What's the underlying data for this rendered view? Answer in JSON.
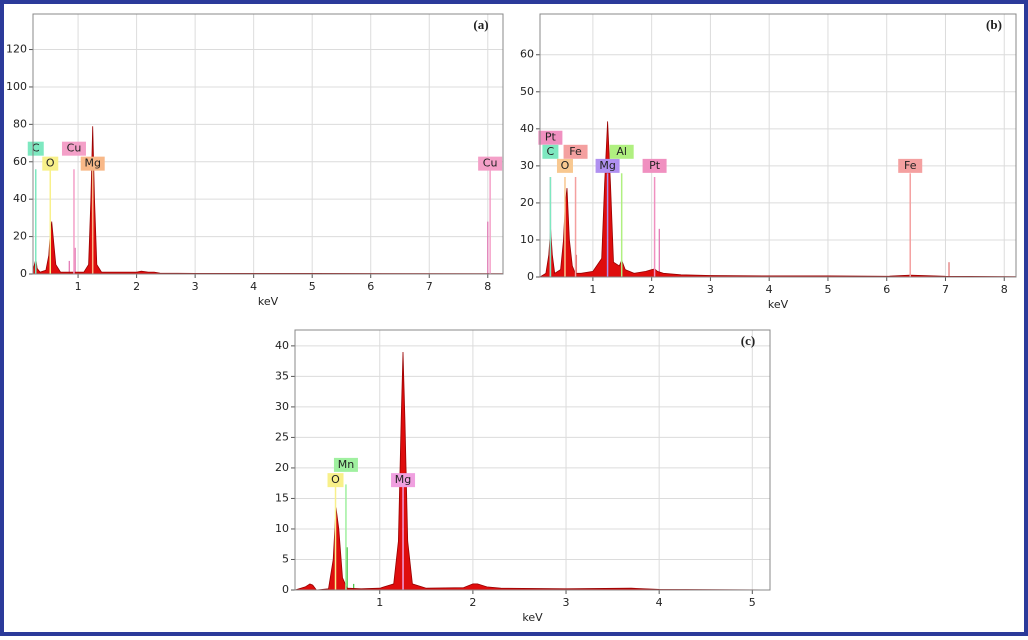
{
  "chart_data": [
    {
      "type": "area",
      "title": "(a)",
      "xlabel": "keV",
      "xlim": [
        0.23,
        8.26
      ],
      "ylim": [
        0,
        139
      ],
      "xticks": [
        1,
        2,
        3,
        4,
        5,
        6,
        7,
        8
      ],
      "yticks": [
        0,
        20,
        40,
        60,
        80,
        100,
        120
      ],
      "grid": true,
      "x": [
        0.23,
        0.28,
        0.3,
        0.35,
        0.45,
        0.5,
        0.52,
        0.55,
        0.58,
        0.62,
        0.7,
        0.9,
        1.1,
        1.18,
        1.22,
        1.25,
        1.28,
        1.32,
        1.4,
        1.8,
        2.0,
        2.08,
        2.2,
        2.3,
        2.4,
        3,
        5,
        8.26
      ],
      "series": [
        {
          "color": "#dd0000",
          "values": [
            2,
            8,
            3,
            1,
            2,
            10,
            20,
            28,
            18,
            5,
            1,
            1,
            1,
            5,
            40,
            79,
            40,
            5,
            1,
            1,
            1,
            1.5,
            1,
            1,
            0.5,
            0.3,
            0.3,
            0.2
          ]
        }
      ],
      "annotations": [
        {
          "label": "C",
          "x": 0.277,
          "y": 56,
          "label_y": 67,
          "color": "#7ee8c0"
        },
        {
          "label": "O",
          "x": 0.525,
          "y": 59,
          "label_y": 59,
          "color": "#f8f08a"
        },
        {
          "label": "Cu",
          "x": 0.93,
          "y": 56,
          "label_y": 67,
          "color": "#f4a0c8"
        },
        {
          "label": "Mg",
          "x": 1.25,
          "y": 59,
          "label_y": 59,
          "color": "#f8b888"
        },
        {
          "label": "Cu",
          "x": 8.04,
          "y": 57,
          "label_y": 59,
          "color": "#f4a0c8"
        }
      ],
      "minor_lines": [
        {
          "x": 0.95,
          "y": 14,
          "color": "#e070b0"
        },
        {
          "x": 0.85,
          "y": 7,
          "color": "#e070b0"
        },
        {
          "x": 8.0,
          "y": 28,
          "color": "#e070b0"
        }
      ]
    },
    {
      "type": "area",
      "title": "(b)",
      "xlabel": "keV",
      "xlim": [
        0.1,
        8.2
      ],
      "ylim": [
        0,
        71
      ],
      "xticks": [
        1,
        2,
        3,
        4,
        5,
        6,
        7,
        8
      ],
      "yticks": [
        0,
        10,
        20,
        30,
        40,
        50,
        60
      ],
      "grid": true,
      "x": [
        0.1,
        0.2,
        0.25,
        0.28,
        0.31,
        0.35,
        0.45,
        0.5,
        0.53,
        0.56,
        0.6,
        0.65,
        0.7,
        0.8,
        1.0,
        1.15,
        1.2,
        1.25,
        1.3,
        1.35,
        1.45,
        1.49,
        1.55,
        1.7,
        1.9,
        2.0,
        2.05,
        2.1,
        2.2,
        2.5,
        3,
        4,
        5,
        6,
        6.4,
        7,
        8.2
      ],
      "series": [
        {
          "color": "#dd0000",
          "values": [
            0,
            1,
            6,
            13,
            6,
            1,
            2,
            10,
            20,
            24,
            10,
            3,
            1,
            1,
            1.5,
            5,
            25,
            42,
            25,
            4,
            3,
            4.5,
            2,
            1,
            1.5,
            2,
            2.2,
            1.5,
            1,
            0.6,
            0.4,
            0.3,
            0.3,
            0.2,
            0.5,
            0.2,
            0.1
          ]
        }
      ],
      "annotations": [
        {
          "label": "Pt",
          "x": 0.277,
          "y": 27,
          "label_y": 37.6,
          "color": "#f090c0"
        },
        {
          "label": "C",
          "x": 0.277,
          "y": 27,
          "label_y": 33.8,
          "color": "#7ee8c0"
        },
        {
          "label": "O",
          "x": 0.525,
          "y": 27,
          "label_y": 30,
          "color": "#f8c890"
        },
        {
          "label": "Fe",
          "x": 0.705,
          "y": 27,
          "label_y": 33.8,
          "color": "#f4a0a0"
        },
        {
          "label": "Mg",
          "x": 1.25,
          "y": 28,
          "label_y": 30,
          "color": "#b090f0"
        },
        {
          "label": "Al",
          "x": 1.49,
          "y": 28,
          "label_y": 33.8,
          "color": "#b0f080"
        },
        {
          "label": "Pt",
          "x": 2.05,
          "y": 27,
          "label_y": 30,
          "color": "#f090c0"
        },
        {
          "label": "Fe",
          "x": 6.4,
          "y": 28,
          "label_y": 30,
          "color": "#f4a0a0"
        }
      ],
      "minor_lines": [
        {
          "x": 0.72,
          "y": 6,
          "color": "#e07070"
        },
        {
          "x": 2.13,
          "y": 13,
          "color": "#e070b0"
        },
        {
          "x": 7.06,
          "y": 4,
          "color": "#e07070"
        }
      ]
    },
    {
      "type": "area",
      "title": "(c)",
      "xlabel": "keV",
      "xlim": [
        0.09,
        5.19
      ],
      "ylim": [
        0,
        42.6
      ],
      "xticks": [
        1,
        2,
        3,
        4,
        5
      ],
      "yticks": [
        0,
        5,
        10,
        15,
        20,
        25,
        30,
        35,
        40
      ],
      "grid": true,
      "x": [
        0.09,
        0.2,
        0.25,
        0.28,
        0.32,
        0.45,
        0.5,
        0.53,
        0.56,
        0.6,
        0.65,
        0.8,
        1.0,
        1.15,
        1.2,
        1.23,
        1.25,
        1.27,
        1.3,
        1.35,
        1.5,
        1.9,
        2.0,
        2.05,
        2.15,
        2.3,
        3,
        3.7,
        4,
        5.19
      ],
      "series": [
        {
          "color": "#dd0000",
          "values": [
            0,
            0.5,
            1,
            0.8,
            0,
            0.2,
            5,
            13.5,
            10,
            2,
            0.3,
            0.2,
            0.3,
            1,
            8,
            28,
            39,
            28,
            8,
            1,
            0.3,
            0.4,
            1,
            1,
            0.5,
            0.3,
            0.2,
            0.3,
            0.1,
            0
          ]
        }
      ],
      "annotations": [
        {
          "label": "O",
          "x": 0.525,
          "y": 17,
          "label_y": 18,
          "color": "#f8f08a"
        },
        {
          "label": "Mn",
          "x": 0.637,
          "y": 17.3,
          "label_y": 20.5,
          "color": "#a0f0a0"
        },
        {
          "label": "Mg",
          "x": 1.25,
          "y": 18,
          "label_y": 18,
          "color": "#f0a0e0"
        }
      ],
      "minor_lines": [
        {
          "x": 0.65,
          "y": 7,
          "color": "#40c040"
        },
        {
          "x": 0.72,
          "y": 1,
          "color": "#40c040"
        }
      ]
    }
  ]
}
